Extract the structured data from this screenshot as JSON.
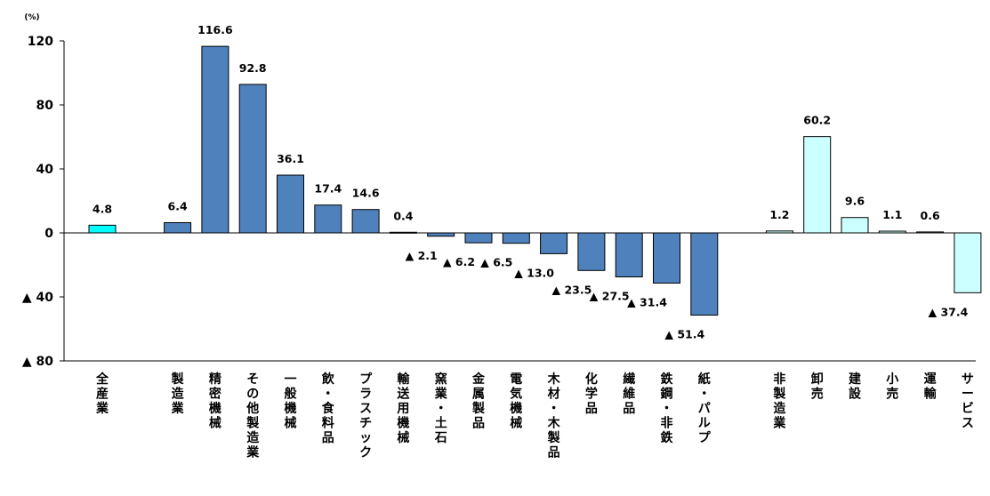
{
  "chart_data": {
    "type": "bar",
    "unit_label": "(%)",
    "ylim": [
      -80,
      120
    ],
    "y_ticks": [
      {
        "value": 120,
        "label": "120"
      },
      {
        "value": 80,
        "label": "80"
      },
      {
        "value": 40,
        "label": "40"
      },
      {
        "value": 0,
        "label": "0"
      },
      {
        "value": -40,
        "label": "▲ 40"
      },
      {
        "value": -80,
        "label": "▲ 80"
      }
    ],
    "grid": false,
    "legend": "none",
    "colors": {
      "total": "#00FFFF",
      "manufacturing": "#4F81BD",
      "non_manufacturing": "#CCFFFF",
      "outline": "#000000"
    },
    "bars": [
      {
        "category": "全産業",
        "value": 4.8,
        "label": "4.8",
        "group": "total",
        "slot": 0
      },
      {
        "category": "製造業",
        "value": 6.4,
        "label": "6.4",
        "group": "manufacturing",
        "slot": 2
      },
      {
        "category": "精密機械",
        "value": 116.6,
        "label": "116.6",
        "group": "manufacturing",
        "slot": 3
      },
      {
        "category": "その他製造業",
        "value": 92.8,
        "label": "92.8",
        "group": "manufacturing",
        "slot": 4
      },
      {
        "category": "一般機械",
        "value": 36.1,
        "label": "36.1",
        "group": "manufacturing",
        "slot": 5
      },
      {
        "category": "飲・食料品",
        "value": 17.4,
        "label": "17.4",
        "group": "manufacturing",
        "slot": 6
      },
      {
        "category": "プラスチック",
        "value": 14.6,
        "label": "14.6",
        "group": "manufacturing",
        "slot": 7
      },
      {
        "category": "輸送用機械",
        "value": 0.4,
        "label": "0.4",
        "group": "manufacturing",
        "slot": 8
      },
      {
        "category": "窯業・土石",
        "value": -2.1,
        "label": "▲ 2.1",
        "group": "manufacturing",
        "slot": 9
      },
      {
        "category": "金属製品",
        "value": -6.2,
        "label": "▲ 6.2",
        "group": "manufacturing",
        "slot": 10
      },
      {
        "category": "電気機械",
        "value": -6.5,
        "label": "▲ 6.5",
        "group": "manufacturing",
        "slot": 11
      },
      {
        "category": "木材・木製品",
        "value": -13.0,
        "label": "▲ 13.0",
        "group": "manufacturing",
        "slot": 12
      },
      {
        "category": "化学品",
        "value": -23.5,
        "label": "▲ 23.5",
        "group": "manufacturing",
        "slot": 13
      },
      {
        "category": "繊維品",
        "value": -27.5,
        "label": "▲ 27.5",
        "group": "manufacturing",
        "slot": 14
      },
      {
        "category": "鉄鋼・非鉄",
        "value": -31.4,
        "label": "▲ 31.4",
        "group": "manufacturing",
        "slot": 15
      },
      {
        "category": "紙・パルプ",
        "value": -51.4,
        "label": "▲ 51.4",
        "group": "manufacturing",
        "slot": 16
      },
      {
        "category": "非製造業",
        "value": 1.2,
        "label": "1.2",
        "group": "non_manufacturing",
        "slot": 18
      },
      {
        "category": "卸売",
        "value": 60.2,
        "label": "60.2",
        "group": "non_manufacturing",
        "slot": 19
      },
      {
        "category": "建設",
        "value": 9.6,
        "label": "9.6",
        "group": "non_manufacturing",
        "slot": 20
      },
      {
        "category": "小売",
        "value": 1.1,
        "label": "1.1",
        "group": "non_manufacturing",
        "slot": 21
      },
      {
        "category": "運輸",
        "value": 0.6,
        "label": "0.6",
        "group": "non_manufacturing",
        "slot": 22
      },
      {
        "category": "サービス",
        "value": -37.4,
        "label": "▲ 37.4",
        "group": "non_manufacturing",
        "slot": 23
      }
    ]
  }
}
